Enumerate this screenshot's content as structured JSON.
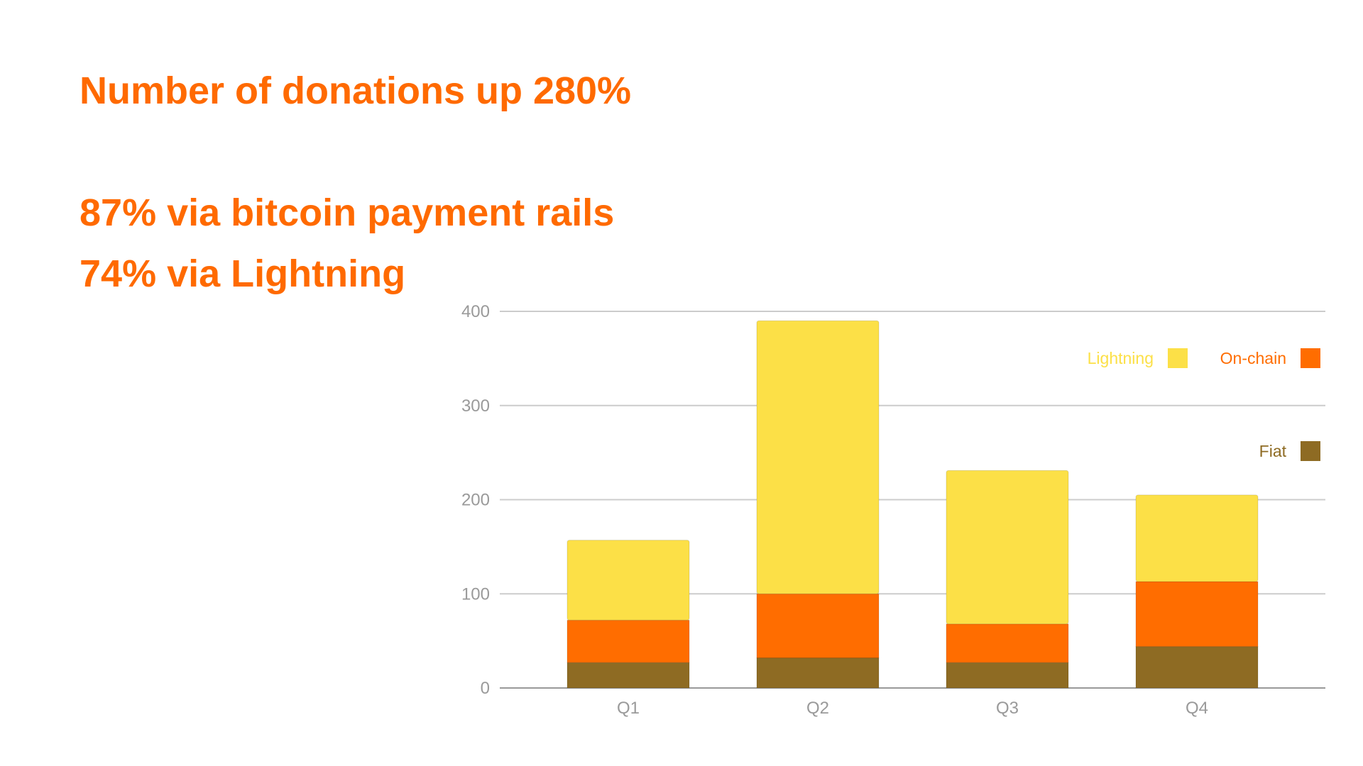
{
  "headlines": [
    "Number of donations up 280%",
    "87% via bitcoin payment rails",
    "74% via Lightning"
  ],
  "headline_color": "#FF6A00",
  "chart_data": {
    "type": "bar",
    "stacked": true,
    "categories": [
      "Q1",
      "Q2",
      "Q3",
      "Q4"
    ],
    "series": [
      {
        "name": "Fiat",
        "color": "#8E6B23",
        "values": [
          27,
          32,
          27,
          44
        ]
      },
      {
        "name": "On-chain",
        "color": "#FF6D00",
        "values": [
          45,
          68,
          41,
          69
        ]
      },
      {
        "name": "Lightning",
        "color": "#FCE047",
        "values": [
          85,
          290,
          163,
          92
        ]
      }
    ],
    "ylim": [
      0,
      400
    ],
    "yticks": [
      "0",
      "100",
      "200",
      "300",
      "400"
    ],
    "grid": true,
    "legend_position": "top-right",
    "legend_order": [
      "Lightning",
      "On-chain",
      "Fiat"
    ]
  }
}
